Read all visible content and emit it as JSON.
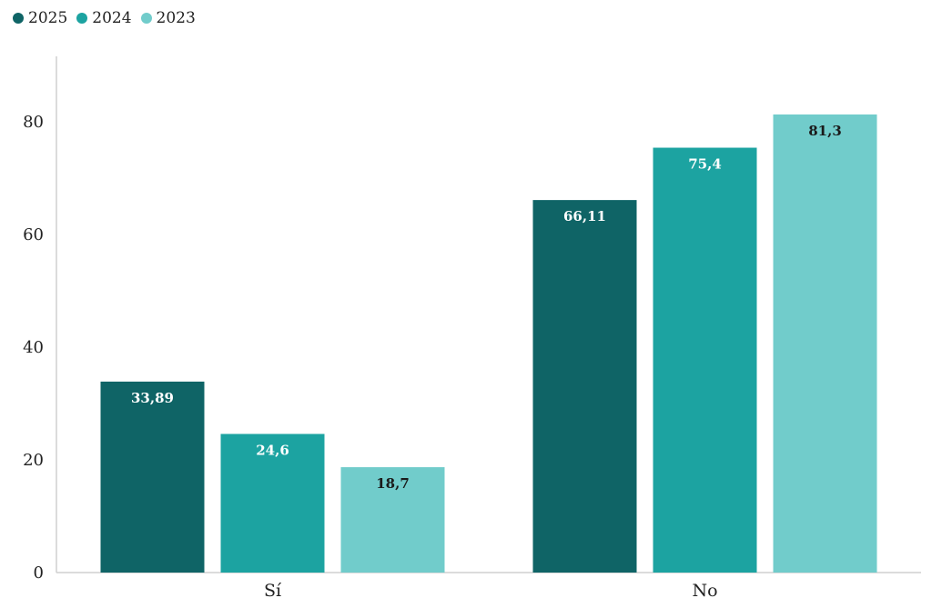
{
  "colors": {
    "s2025": "#0f6466",
    "s2024": "#1ca3a1",
    "s2023": "#71cccb",
    "axis": "#cfcfcf"
  },
  "legend": [
    {
      "label": "2025"
    },
    {
      "label": "2024"
    },
    {
      "label": "2023"
    }
  ],
  "chart_data": {
    "type": "bar",
    "title": "",
    "xlabel": "",
    "ylabel": "",
    "categories": [
      "Sí",
      "No"
    ],
    "series": [
      {
        "name": "2025",
        "values": [
          33.89,
          66.11
        ],
        "labels": [
          "33,89",
          "66,11"
        ]
      },
      {
        "name": "2024",
        "values": [
          24.6,
          75.4
        ],
        "labels": [
          "24,6",
          "75,4"
        ]
      },
      {
        "name": "2023",
        "values": [
          18.7,
          81.3
        ],
        "labels": [
          "18,7",
          "81,3"
        ]
      }
    ],
    "yticks": [
      "0",
      "20",
      "40",
      "60",
      "80"
    ],
    "ylim": [
      0,
      90
    ],
    "grid": false,
    "legend_position": "top-left"
  }
}
